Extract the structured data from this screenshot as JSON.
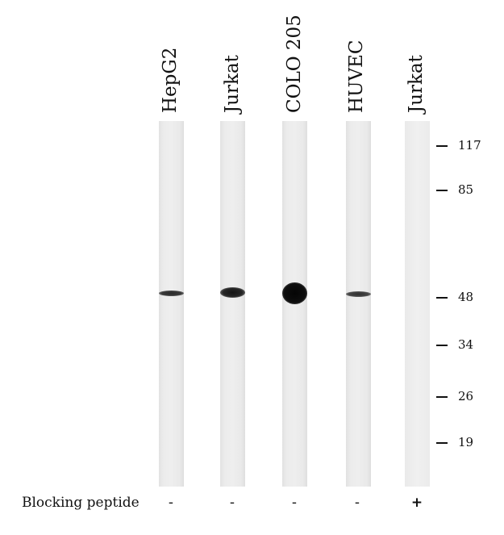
{
  "lanes": [
    {
      "label": "HepG2",
      "blocking": "-",
      "band_intensity": 0.55
    },
    {
      "label": "Jurkat",
      "blocking": "-",
      "band_intensity": 0.75
    },
    {
      "label": "COLO 205",
      "blocking": "-",
      "band_intensity": 1.0
    },
    {
      "label": "HUVEC",
      "blocking": "-",
      "band_intensity": 0.5
    },
    {
      "label": "Jurkat",
      "blocking": "+",
      "band_intensity": 0.0
    }
  ],
  "markers": [
    "117",
    "85",
    "48",
    "34",
    "26",
    "19"
  ],
  "blocking_label": "Blocking peptide"
}
